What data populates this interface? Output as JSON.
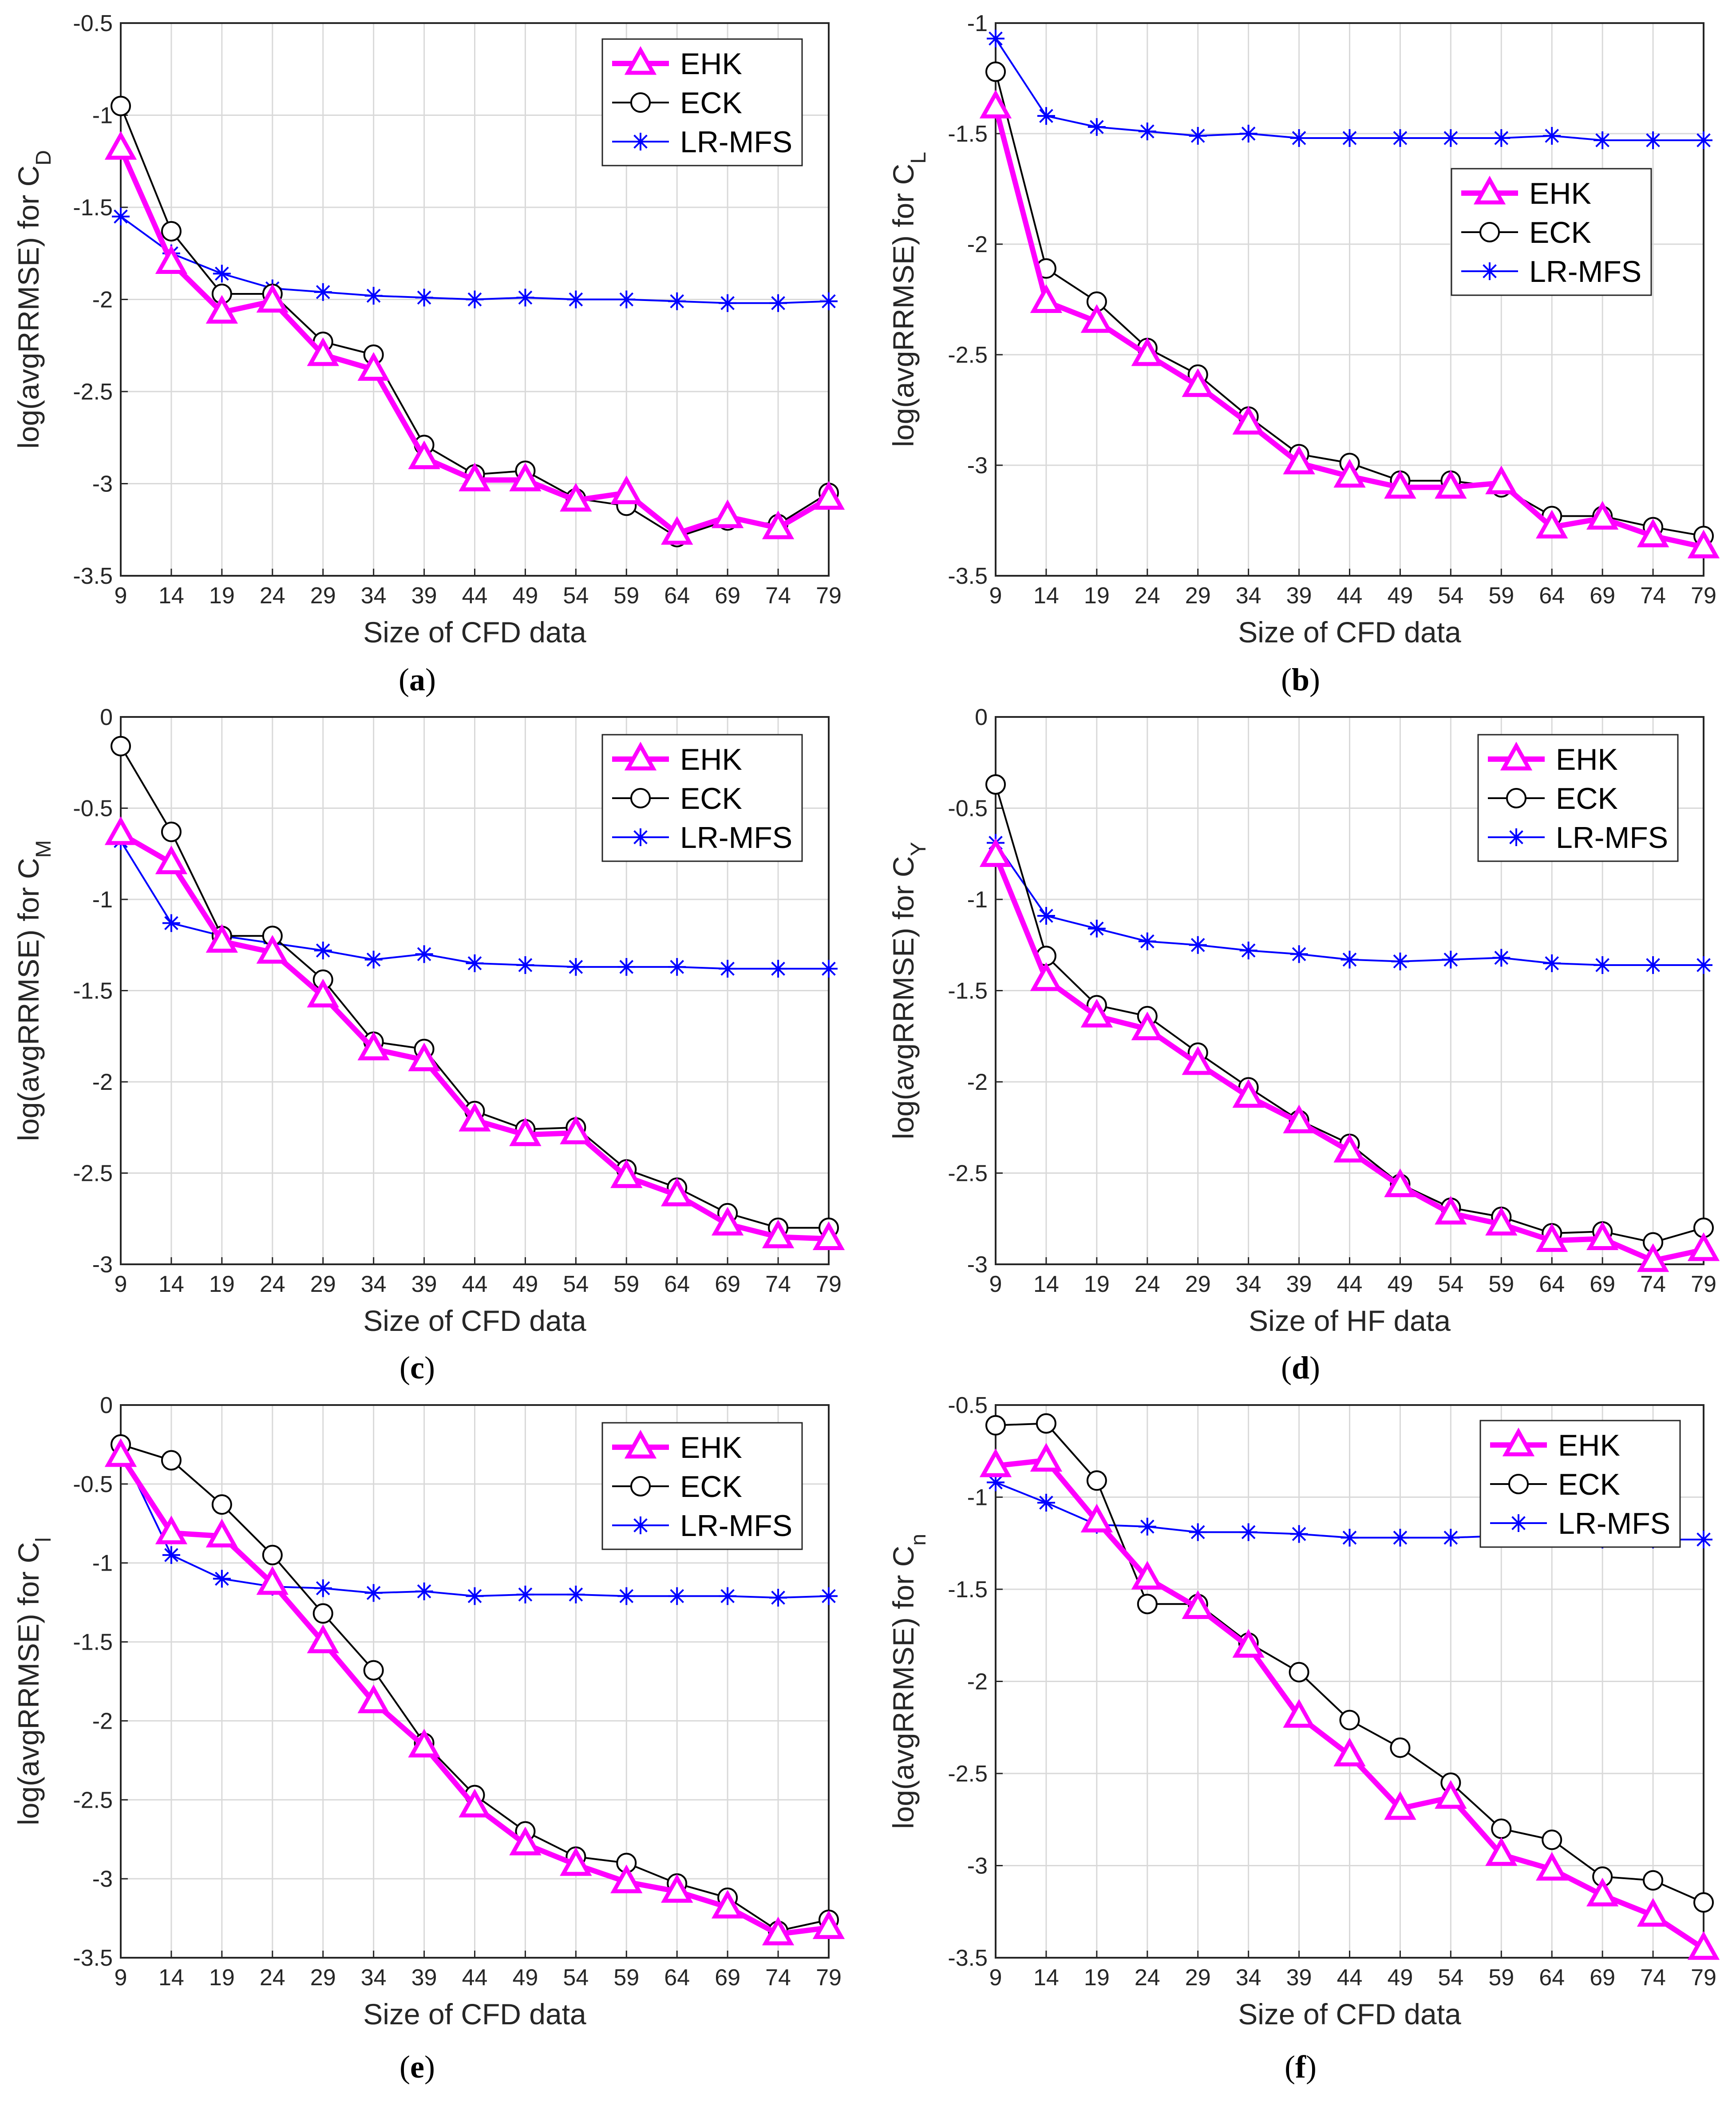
{
  "colors": {
    "EHK": "#ff00ff",
    "ECK": "#000000",
    "LR-MFS": "#0000ff",
    "grid": "#d9d9d9"
  },
  "legend": [
    "EHK",
    "ECK",
    "LR-MFS"
  ],
  "chart_data": [
    {
      "type": "line",
      "label": "(a)",
      "label_letter": "a",
      "xlabel": "Size of CFD data",
      "ylabel": "log(avgRRMSE) for C",
      "ylabel_sub": "D",
      "x": [
        9,
        14,
        19,
        24,
        29,
        34,
        39,
        44,
        49,
        54,
        59,
        64,
        69,
        74,
        79
      ],
      "xlim": [
        9,
        79
      ],
      "ylim": [
        -3.5,
        -0.5
      ],
      "yticks": [
        "-0.5",
        "-1",
        "-1.5",
        "-2",
        "-2.5",
        "-3",
        "-3.5"
      ],
      "legend_loc": "top-right",
      "series": [
        {
          "name": "EHK",
          "values": [
            -1.18,
            -1.8,
            -2.07,
            -2.01,
            -2.3,
            -2.38,
            -2.86,
            -2.98,
            -2.98,
            -3.09,
            -3.05,
            -3.27,
            -3.18,
            -3.24,
            -3.08
          ]
        },
        {
          "name": "ECK",
          "values": [
            -0.95,
            -1.63,
            -1.97,
            -1.97,
            -2.23,
            -2.3,
            -2.79,
            -2.95,
            -2.93,
            -3.08,
            -3.12,
            -3.29,
            -3.2,
            -3.22,
            -3.05
          ]
        },
        {
          "name": "LR-MFS",
          "values": [
            -1.55,
            -1.75,
            -1.86,
            -1.94,
            -1.96,
            -1.98,
            -1.99,
            -2.0,
            -1.99,
            -2.0,
            -2.0,
            -2.01,
            -2.02,
            -2.02,
            -2.01
          ]
        }
      ]
    },
    {
      "type": "line",
      "label": "(b)",
      "label_letter": "b",
      "xlabel": "Size of CFD data",
      "ylabel": "log(avgRRMSE) for C",
      "ylabel_sub": "L",
      "x": [
        9,
        14,
        19,
        24,
        29,
        34,
        39,
        44,
        49,
        54,
        59,
        64,
        69,
        74,
        79
      ],
      "xlim": [
        9,
        79
      ],
      "ylim": [
        -3.5,
        -1
      ],
      "yticks": [
        "-1",
        "-1.5",
        "-2",
        "-2.5",
        "-3",
        "-3.5"
      ],
      "legend_loc": "upper-middle-right",
      "series": [
        {
          "name": "EHK",
          "values": [
            -1.38,
            -2.26,
            -2.35,
            -2.5,
            -2.64,
            -2.81,
            -2.99,
            -3.05,
            -3.1,
            -3.1,
            -3.08,
            -3.28,
            -3.24,
            -3.32,
            -3.37
          ]
        },
        {
          "name": "ECK",
          "values": [
            -1.22,
            -2.11,
            -2.26,
            -2.47,
            -2.59,
            -2.78,
            -2.95,
            -2.99,
            -3.07,
            -3.07,
            -3.1,
            -3.23,
            -3.23,
            -3.28,
            -3.32
          ]
        },
        {
          "name": "LR-MFS",
          "values": [
            -1.07,
            -1.42,
            -1.47,
            -1.49,
            -1.51,
            -1.5,
            -1.52,
            -1.52,
            -1.52,
            -1.52,
            -1.52,
            -1.51,
            -1.53,
            -1.53,
            -1.53
          ]
        }
      ]
    },
    {
      "type": "line",
      "label": "(c)",
      "label_letter": "c",
      "xlabel": "Size of CFD data",
      "ylabel": "log(avgRRMSE) for C",
      "ylabel_sub": "M",
      "x": [
        9,
        14,
        19,
        24,
        29,
        34,
        39,
        44,
        49,
        54,
        59,
        64,
        69,
        74,
        79
      ],
      "xlim": [
        9,
        79
      ],
      "ylim": [
        -3,
        0
      ],
      "yticks": [
        "0",
        "-0.5",
        "-1",
        "-1.5",
        "-2",
        "-2.5",
        "-3"
      ],
      "legend_loc": "top-right",
      "series": [
        {
          "name": "EHK",
          "values": [
            -0.64,
            -0.8,
            -1.23,
            -1.29,
            -1.53,
            -1.82,
            -1.88,
            -2.21,
            -2.29,
            -2.28,
            -2.52,
            -2.62,
            -2.78,
            -2.85,
            -2.86
          ]
        },
        {
          "name": "ECK",
          "values": [
            -0.16,
            -0.63,
            -1.2,
            -1.2,
            -1.44,
            -1.78,
            -1.82,
            -2.16,
            -2.26,
            -2.25,
            -2.48,
            -2.58,
            -2.72,
            -2.8,
            -2.8
          ]
        },
        {
          "name": "LR-MFS",
          "values": [
            -0.68,
            -1.13,
            -1.2,
            -1.24,
            -1.28,
            -1.33,
            -1.3,
            -1.35,
            -1.36,
            -1.37,
            -1.37,
            -1.37,
            -1.38,
            -1.38,
            -1.38
          ]
        }
      ]
    },
    {
      "type": "line",
      "label": "(d)",
      "label_letter": "d",
      "xlabel": "Size of HF data",
      "ylabel": "log(avgRRMSE) for C",
      "ylabel_sub": "Y",
      "x": [
        9,
        14,
        19,
        24,
        29,
        34,
        39,
        44,
        49,
        54,
        59,
        64,
        69,
        74,
        79
      ],
      "xlim": [
        9,
        79
      ],
      "ylim": [
        -3,
        0
      ],
      "yticks": [
        "0",
        "-0.5",
        "-1",
        "-1.5",
        "-2",
        "-2.5",
        "-3"
      ],
      "legend_loc": "top-right",
      "series": [
        {
          "name": "EHK",
          "values": [
            -0.76,
            -1.44,
            -1.64,
            -1.71,
            -1.9,
            -2.08,
            -2.22,
            -2.38,
            -2.57,
            -2.72,
            -2.78,
            -2.87,
            -2.86,
            -2.98,
            -2.92
          ]
        },
        {
          "name": "ECK",
          "values": [
            -0.37,
            -1.31,
            -1.58,
            -1.64,
            -1.84,
            -2.03,
            -2.21,
            -2.34,
            -2.56,
            -2.69,
            -2.74,
            -2.83,
            -2.82,
            -2.88,
            -2.8
          ]
        },
        {
          "name": "LR-MFS",
          "values": [
            -0.69,
            -1.09,
            -1.16,
            -1.23,
            -1.25,
            -1.28,
            -1.3,
            -1.33,
            -1.34,
            -1.33,
            -1.32,
            -1.35,
            -1.36,
            -1.36,
            -1.36
          ]
        }
      ]
    },
    {
      "type": "line",
      "label": "(e)",
      "label_letter": "e",
      "xlabel": "Size of CFD data",
      "ylabel": "log(avgRRMSE) for C",
      "ylabel_sub": "l",
      "x": [
        9,
        14,
        19,
        24,
        29,
        34,
        39,
        44,
        49,
        54,
        59,
        64,
        69,
        74,
        79
      ],
      "xlim": [
        9,
        79
      ],
      "ylim": [
        -3.5,
        0
      ],
      "yticks": [
        "0",
        "-0.5",
        "-1",
        "-1.5",
        "-2",
        "-2.5",
        "-3",
        "-3.5"
      ],
      "legend_loc": "top-right",
      "series": [
        {
          "name": "EHK",
          "values": [
            -0.32,
            -0.81,
            -0.83,
            -1.13,
            -1.5,
            -1.88,
            -2.16,
            -2.54,
            -2.78,
            -2.91,
            -3.02,
            -3.08,
            -3.18,
            -3.35,
            -3.31
          ]
        },
        {
          "name": "ECK",
          "values": [
            -0.25,
            -0.35,
            -0.63,
            -0.95,
            -1.32,
            -1.68,
            -2.14,
            -2.47,
            -2.7,
            -2.86,
            -2.9,
            -3.03,
            -3.12,
            -3.33,
            -3.26
          ]
        },
        {
          "name": "LR-MFS",
          "values": [
            -0.28,
            -0.95,
            -1.1,
            -1.15,
            -1.16,
            -1.19,
            -1.18,
            -1.21,
            -1.2,
            -1.2,
            -1.21,
            -1.21,
            -1.21,
            -1.22,
            -1.21
          ]
        }
      ]
    },
    {
      "type": "line",
      "label": "(f)",
      "label_letter": "f",
      "xlabel": "Size of CFD data",
      "ylabel": "log(avgRRMSE) for C",
      "ylabel_sub": "n",
      "x": [
        9,
        14,
        19,
        24,
        29,
        34,
        39,
        44,
        49,
        54,
        59,
        64,
        69,
        74,
        79
      ],
      "xlim": [
        9,
        79
      ],
      "ylim": [
        -3.5,
        -0.5
      ],
      "yticks": [
        "-0.5",
        "-1",
        "-1.5",
        "-2",
        "-2.5",
        "-3",
        "-3.5"
      ],
      "legend_loc": "top-right",
      "series": [
        {
          "name": "EHK",
          "values": [
            -0.83,
            -0.8,
            -1.13,
            -1.44,
            -1.6,
            -1.81,
            -2.19,
            -2.4,
            -2.69,
            -2.63,
            -2.94,
            -3.02,
            -3.16,
            -3.27,
            -3.45
          ]
        },
        {
          "name": "ECK",
          "values": [
            -0.61,
            -0.6,
            -0.91,
            -1.58,
            -1.58,
            -1.79,
            -1.95,
            -2.21,
            -2.36,
            -2.55,
            -2.8,
            -2.86,
            -3.06,
            -3.08,
            -3.2
          ]
        },
        {
          "name": "LR-MFS",
          "values": [
            -0.92,
            -1.03,
            -1.15,
            -1.16,
            -1.19,
            -1.19,
            -1.2,
            -1.22,
            -1.22,
            -1.22,
            -1.21,
            -1.22,
            -1.23,
            -1.23,
            -1.23
          ]
        }
      ]
    }
  ]
}
